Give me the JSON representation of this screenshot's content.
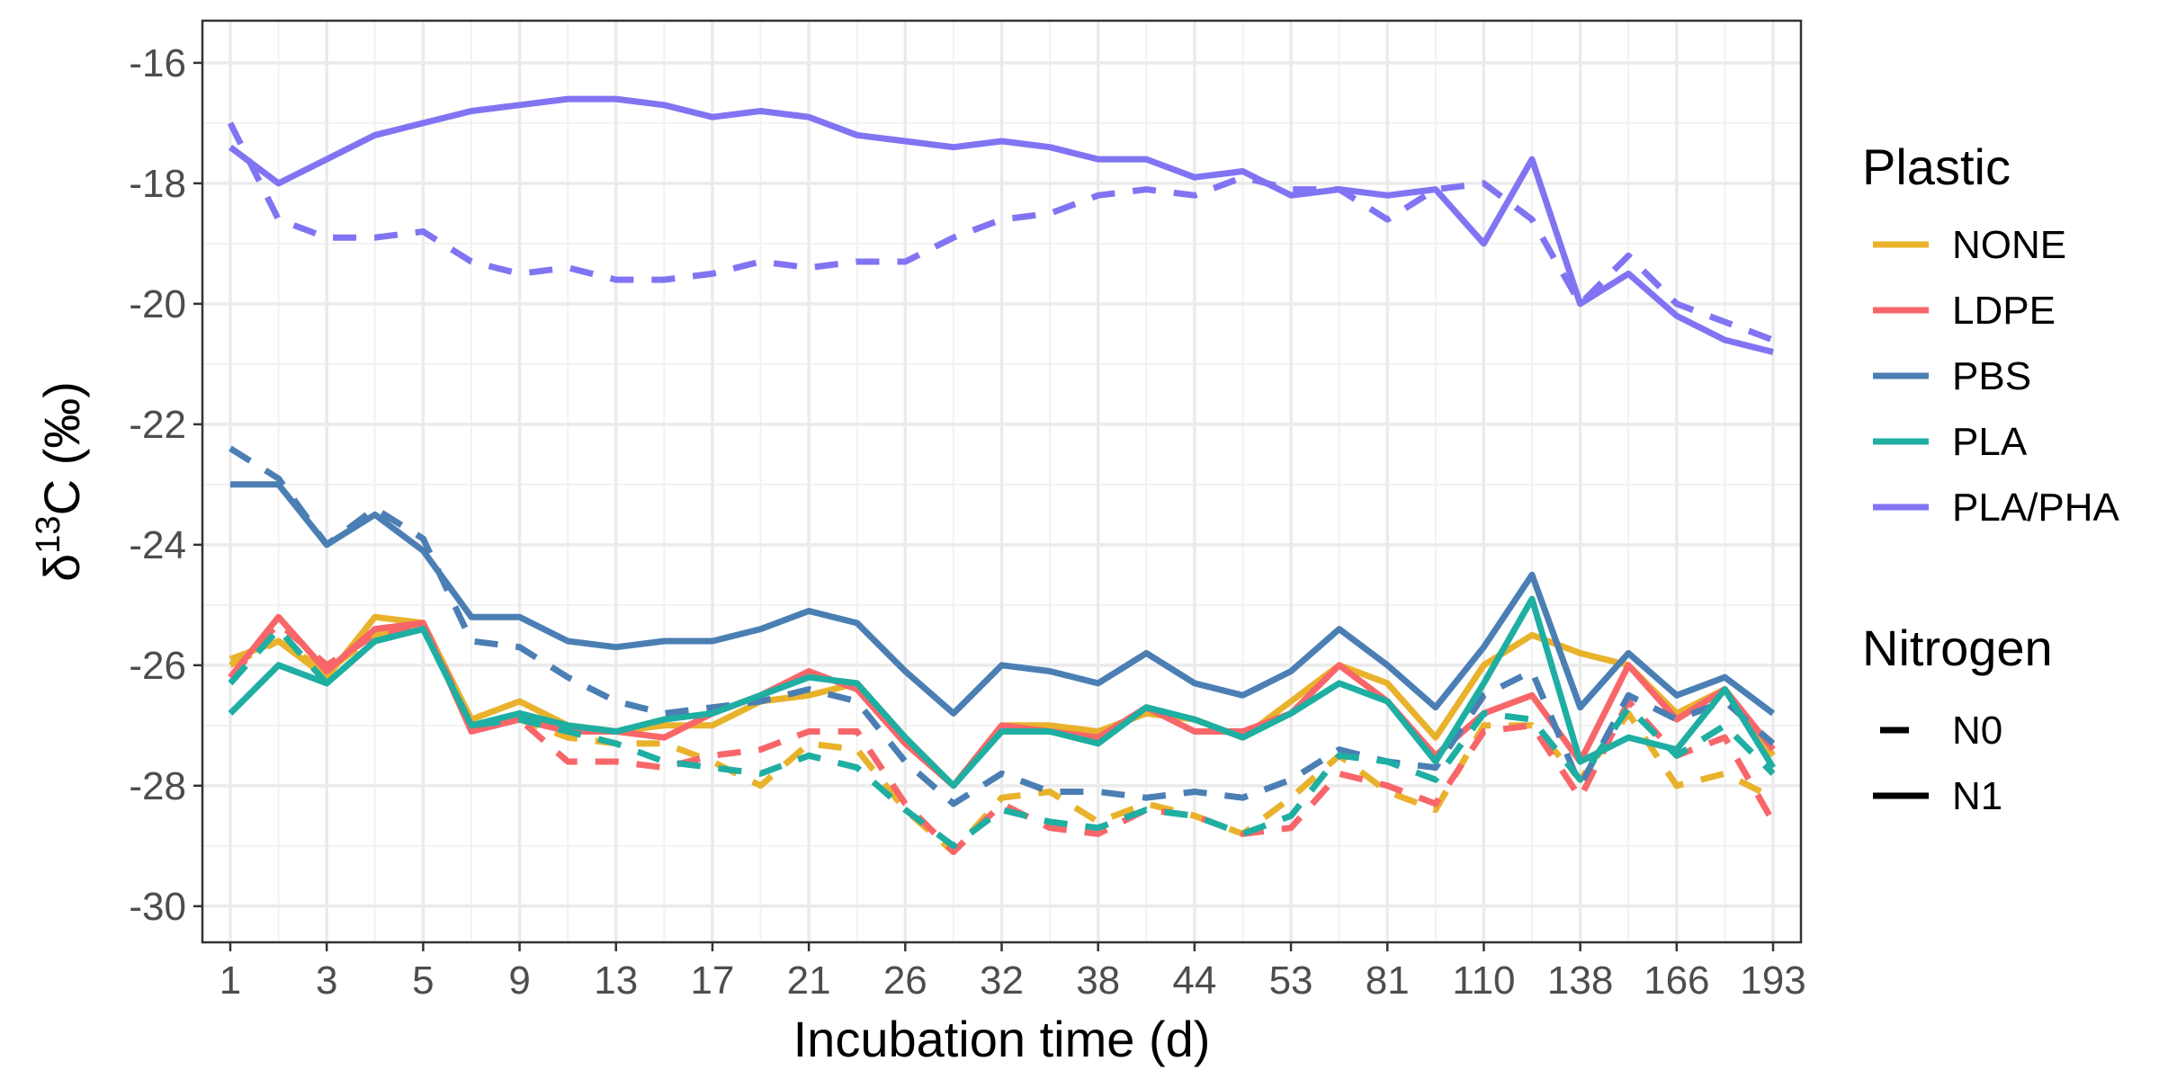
{
  "chart_data": {
    "type": "line",
    "xlabel": "Incubation time (d)",
    "ylabel_prefix": "δ",
    "ylabel_superscript": "13",
    "ylabel_suffix": "C (‰)",
    "x": [
      "1",
      "2",
      "3",
      "4",
      "5",
      "7",
      "9",
      "11",
      "13",
      "15",
      "17",
      "19",
      "21",
      "24",
      "26",
      "29",
      "32",
      "35",
      "38",
      "41",
      "44",
      "48",
      "53",
      "67",
      "81",
      "95",
      "110",
      "124",
      "138",
      "152",
      "166",
      "180",
      "193"
    ],
    "xticks": [
      "1",
      "3",
      "5",
      "9",
      "13",
      "17",
      "21",
      "26",
      "32",
      "38",
      "44",
      "53",
      "81",
      "110",
      "138",
      "166",
      "193"
    ],
    "ylim": [
      -30.6,
      -15.3
    ],
    "yticks": [
      -30,
      -28,
      -26,
      -24,
      -22,
      -20,
      -18,
      -16
    ],
    "grid": true,
    "legend_position": "right",
    "series": [
      {
        "name": "NONE",
        "nitrogen": "N0",
        "color": "#E9B22B",
        "values": [
          -26.0,
          -25.6,
          -26.1,
          -25.5,
          -25.4,
          -27.0,
          -26.9,
          -27.2,
          -27.3,
          -27.3,
          -27.6,
          -28.0,
          -27.3,
          -27.4,
          -28.4,
          -29.1,
          -28.2,
          -28.1,
          -28.6,
          -28.3,
          -28.5,
          -28.8,
          -28.2,
          -27.5,
          -28.1,
          -28.4,
          -27.0,
          -27.0,
          -27.9,
          -26.8,
          -28.0,
          -27.8,
          -28.2
        ]
      },
      {
        "name": "NONE",
        "nitrogen": "N1",
        "color": "#E9B22B",
        "values": [
          -25.9,
          -25.6,
          -26.2,
          -25.2,
          -25.3,
          -26.9,
          -26.6,
          -27.0,
          -27.1,
          -27.0,
          -27.0,
          -26.6,
          -26.5,
          -26.3,
          -27.2,
          -28.0,
          -27.0,
          -27.0,
          -27.1,
          -26.8,
          -26.9,
          -27.2,
          -26.6,
          -26.0,
          -26.3,
          -27.2,
          -26.0,
          -25.5,
          -25.8,
          -26.0,
          -26.8,
          -26.4,
          -27.5
        ]
      },
      {
        "name": "LDPE",
        "nitrogen": "N0",
        "color": "#F8666A",
        "values": [
          -26.2,
          -25.3,
          -26.0,
          -25.5,
          -25.3,
          -27.0,
          -26.9,
          -27.6,
          -27.6,
          -27.7,
          -27.5,
          -27.4,
          -27.1,
          -27.1,
          -28.3,
          -29.1,
          -28.3,
          -28.7,
          -28.8,
          -28.4,
          -28.5,
          -28.8,
          -28.7,
          -27.8,
          -28.0,
          -28.3,
          -27.1,
          -27.0,
          -28.2,
          -26.6,
          -27.5,
          -27.2,
          -28.6
        ]
      },
      {
        "name": "LDPE",
        "nitrogen": "N1",
        "color": "#F8666A",
        "values": [
          -26.2,
          -25.2,
          -26.1,
          -25.4,
          -25.3,
          -27.1,
          -26.9,
          -27.1,
          -27.1,
          -27.2,
          -26.8,
          -26.5,
          -26.1,
          -26.4,
          -27.3,
          -28.0,
          -27.0,
          -27.1,
          -27.2,
          -26.7,
          -27.1,
          -27.1,
          -26.8,
          -26.0,
          -26.6,
          -27.5,
          -26.8,
          -26.5,
          -27.6,
          -26.0,
          -26.9,
          -26.4,
          -27.4
        ]
      },
      {
        "name": "PBS",
        "nitrogen": "N0",
        "color": "#4B7FB4",
        "values": [
          -22.4,
          -22.9,
          -24.0,
          -23.4,
          -23.9,
          -25.6,
          -25.7,
          -26.2,
          -26.6,
          -26.8,
          -26.7,
          -26.6,
          -26.4,
          -26.6,
          -27.6,
          -28.3,
          -27.8,
          -28.1,
          -28.1,
          -28.2,
          -28.1,
          -28.2,
          -27.9,
          -27.4,
          -27.6,
          -27.7,
          -26.5,
          -26.1,
          -28.0,
          -26.5,
          -26.9,
          -26.6,
          -27.3
        ]
      },
      {
        "name": "PBS",
        "nitrogen": "N1",
        "color": "#4B7FB4",
        "values": [
          -23.0,
          -23.0,
          -24.0,
          -23.5,
          -24.1,
          -25.2,
          -25.2,
          -25.6,
          -25.7,
          -25.6,
          -25.6,
          -25.4,
          -25.1,
          -25.3,
          -26.1,
          -26.8,
          -26.0,
          -26.1,
          -26.3,
          -25.8,
          -26.3,
          -26.5,
          -26.1,
          -25.4,
          -26.0,
          -26.7,
          -25.7,
          -24.5,
          -26.7,
          -25.8,
          -26.5,
          -26.2,
          -26.8
        ]
      },
      {
        "name": "PLA",
        "nitrogen": "N0",
        "color": "#1FAEA2",
        "values": [
          -26.3,
          -25.4,
          -26.3,
          -25.6,
          -25.4,
          -27.0,
          -26.9,
          -27.1,
          -27.3,
          -27.6,
          -27.7,
          -27.8,
          -27.5,
          -27.7,
          -28.4,
          -29.0,
          -28.4,
          -28.6,
          -28.7,
          -28.4,
          -28.5,
          -28.8,
          -28.5,
          -27.5,
          -27.6,
          -27.9,
          -26.8,
          -26.9,
          -27.9,
          -26.7,
          -27.5,
          -27.0,
          -27.8
        ]
      },
      {
        "name": "PLA",
        "nitrogen": "N1",
        "color": "#1FAEA2",
        "values": [
          -26.8,
          -26.0,
          -26.3,
          -25.6,
          -25.4,
          -27.0,
          -26.8,
          -27.0,
          -27.1,
          -26.9,
          -26.8,
          -26.5,
          -26.2,
          -26.3,
          -27.2,
          -28.0,
          -27.1,
          -27.1,
          -27.3,
          -26.7,
          -26.9,
          -27.2,
          -26.8,
          -26.3,
          -26.6,
          -27.6,
          -26.3,
          -24.9,
          -27.6,
          -27.2,
          -27.4,
          -26.4,
          -27.7
        ]
      },
      {
        "name": "PLA/PHA",
        "nitrogen": "N0",
        "color": "#8174F3",
        "values": [
          -17.0,
          -18.6,
          -18.9,
          -18.9,
          -18.8,
          -19.3,
          -19.5,
          -19.4,
          -19.6,
          -19.6,
          -19.5,
          -19.3,
          -19.4,
          -19.3,
          -19.3,
          -18.9,
          -18.6,
          -18.5,
          -18.2,
          -18.1,
          -18.2,
          -17.9,
          -18.1,
          -18.1,
          -18.6,
          -18.1,
          -18.0,
          -18.6,
          -20.0,
          -19.2,
          -20.0,
          -20.3,
          -20.6
        ]
      },
      {
        "name": "PLA/PHA",
        "nitrogen": "N1",
        "color": "#8174F3",
        "values": [
          -17.4,
          -18.0,
          -17.6,
          -17.2,
          -17.0,
          -16.8,
          -16.7,
          -16.6,
          -16.6,
          -16.7,
          -16.9,
          -16.8,
          -16.9,
          -17.2,
          -17.3,
          -17.4,
          -17.3,
          -17.4,
          -17.6,
          -17.6,
          -17.9,
          -17.8,
          -18.2,
          -18.1,
          -18.2,
          -18.1,
          -19.0,
          -17.6,
          -20.0,
          -19.5,
          -20.2,
          -20.6,
          -20.8
        ]
      }
    ],
    "legend": {
      "plastic_title": "Plastic",
      "plastic_items": [
        {
          "label": "NONE",
          "color": "#E9B22B"
        },
        {
          "label": "LDPE",
          "color": "#F8666A"
        },
        {
          "label": "PBS",
          "color": "#4B7FB4"
        },
        {
          "label": "PLA",
          "color": "#1FAEA2"
        },
        {
          "label": "PLA/PHA",
          "color": "#8174F3"
        }
      ],
      "nitrogen_title": "Nitrogen",
      "nitrogen_items": [
        {
          "label": "N0",
          "style": "dashed"
        },
        {
          "label": "N1",
          "style": "solid"
        }
      ]
    }
  }
}
